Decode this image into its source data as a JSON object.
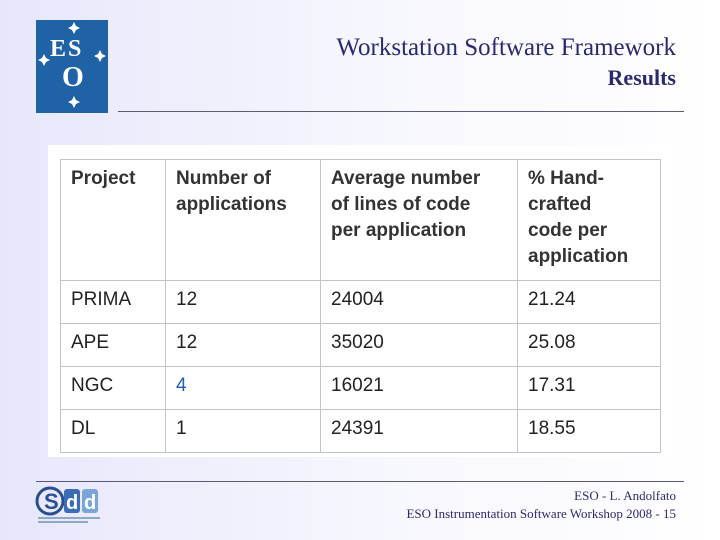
{
  "logo": {
    "text": "ESO"
  },
  "header": {
    "title": "Workstation Software Framework",
    "subtitle": "Results"
  },
  "table": {
    "headers": [
      [
        "Project"
      ],
      [
        "Number of",
        "applications"
      ],
      [
        "Average number",
        "of lines of code",
        "per application"
      ],
      [
        "% Hand-",
        "crafted",
        "code per",
        "application"
      ]
    ],
    "rows": [
      [
        "PRIMA",
        "12",
        "24004",
        "21.24"
      ],
      [
        "APE",
        "12",
        "35020",
        "25.08"
      ],
      [
        "NGC",
        "4",
        "16021",
        "17.31"
      ],
      [
        "DL",
        "1",
        "24391",
        "18.55"
      ]
    ]
  },
  "footer": {
    "line1": "ESO - L. Andolfato",
    "line2": "ESO Instrumentation Software Workshop 2008 - 15"
  },
  "colors": {
    "eso_blue": "#1f63a6",
    "title_text": "#2a2a6e",
    "link_blue": "#1f5fb0"
  }
}
